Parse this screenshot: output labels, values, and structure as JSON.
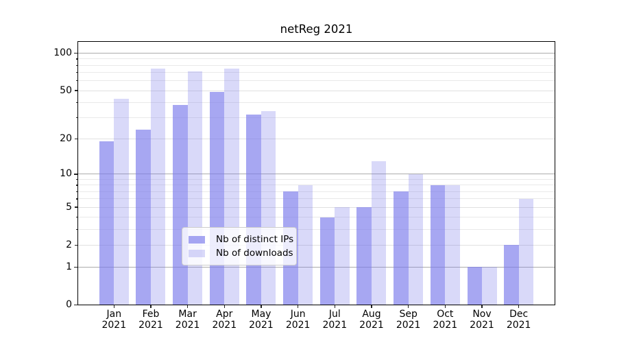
{
  "title": "netReg 2021",
  "legend": {
    "items": [
      {
        "label": "Nb of distinct IPs",
        "series_key": "ips"
      },
      {
        "label": "Nb of downloads",
        "series_key": "downloads"
      }
    ]
  },
  "chart_data": {
    "type": "bar",
    "title": "netReg 2021",
    "xlabel": "",
    "ylabel": "",
    "categories": [
      "Jan",
      "Feb",
      "Mar",
      "Apr",
      "May",
      "Jun",
      "Jul",
      "Aug",
      "Sep",
      "Oct",
      "Nov",
      "Dec"
    ],
    "year": "2021",
    "series": [
      {
        "name": "Nb of distinct IPs",
        "values": [
          19,
          24,
          38,
          49,
          32,
          7,
          4,
          5,
          7,
          8,
          1,
          2
        ]
      },
      {
        "name": "Nb of downloads",
        "values": [
          43,
          75,
          72,
          75,
          34,
          8,
          5,
          13,
          10,
          8,
          1,
          6
        ]
      }
    ],
    "yscale": "log1p",
    "ylim": [
      0,
      125
    ],
    "yticks": [
      {
        "v": 0,
        "label": "0"
      },
      {
        "v": 1,
        "label": "1"
      },
      {
        "v": 2,
        "label": "2"
      },
      {
        "v": 5,
        "label": "5"
      },
      {
        "v": 10,
        "label": "10"
      },
      {
        "v": 20,
        "label": "20"
      },
      {
        "v": 50,
        "label": "50"
      },
      {
        "v": 100,
        "label": "100"
      }
    ],
    "grid": {
      "decade_values": [
        1,
        10,
        100
      ],
      "labeled_minor_values": [
        2,
        5,
        20,
        50
      ],
      "minor_values": [
        3,
        4,
        6,
        7,
        8,
        9,
        30,
        40,
        60,
        70,
        80,
        90
      ]
    },
    "legend_position": "lower center",
    "colors": {
      "bar_base": "#7878eb",
      "ips_alpha": 0.65,
      "downloads_alpha": 0.28,
      "grid_decade": "#ababab",
      "grid_labeled_minor": "#e0e0e0",
      "grid_minor": "#e9e9e9",
      "frame": "#000000"
    }
  }
}
